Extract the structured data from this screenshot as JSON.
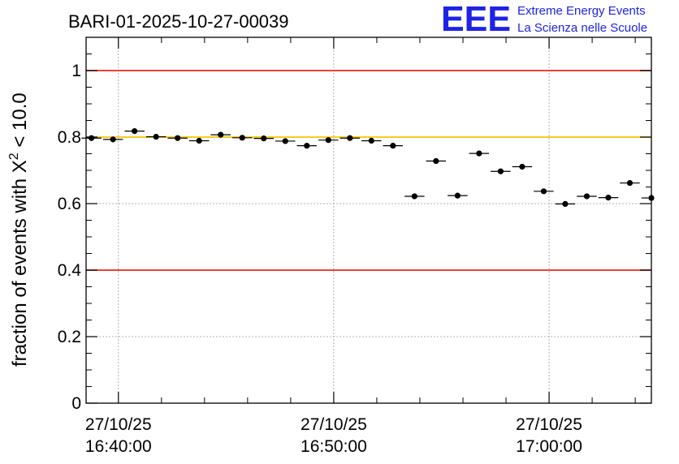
{
  "header": {
    "title": "BARI-01-2025-10-27-00039",
    "brand_logo": "EEE",
    "brand_line1": "Extreme Energy Events",
    "brand_line2": "La Scienza nelle Scuole",
    "brand_color": "#1f23e6"
  },
  "chart_data": {
    "type": "scatter",
    "title": "BARI-01-2025-10-27-00039",
    "ylabel_prefix": "fraction of events with ",
    "ylabel_chi": "X",
    "ylabel_sup": "2",
    "ylabel_suffix": " < 10.0",
    "ylim": [
      0,
      1.1
    ],
    "yticks": [
      0,
      0.2,
      0.4,
      0.6,
      0.8,
      1
    ],
    "ytick_labels": [
      "0",
      "0.2",
      "0.4",
      "0.6",
      "0.8",
      "1"
    ],
    "xlim": [
      "16:38:30",
      "17:04:45"
    ],
    "xticks": [
      {
        "date": "27/10/25",
        "time": "16:40:00"
      },
      {
        "date": "27/10/25",
        "time": "16:50:00"
      },
      {
        "date": "27/10/25",
        "time": "17:00:00"
      }
    ],
    "xtick_times": [
      "16:40:00",
      "16:50:00",
      "17:00:00"
    ],
    "grid": true,
    "reference_lines": [
      {
        "y": 1.0,
        "color": "#e8261f"
      },
      {
        "y": 0.8,
        "color": "#f7c600"
      },
      {
        "y": 0.4,
        "color": "#e8261f"
      }
    ],
    "series": [
      {
        "color": "#000000",
        "x": [
          "16:38:45",
          "16:39:45",
          "16:40:45",
          "16:41:45",
          "16:42:45",
          "16:43:45",
          "16:44:45",
          "16:45:45",
          "16:46:45",
          "16:47:45",
          "16:48:45",
          "16:49:45",
          "16:50:45",
          "16:51:45",
          "16:52:45",
          "16:53:45",
          "16:54:45",
          "16:55:45",
          "16:56:45",
          "16:57:45",
          "16:58:45",
          "16:59:45",
          "17:00:45",
          "17:01:45",
          "17:02:45",
          "17:03:45",
          "17:04:45"
        ],
        "values": [
          0.797,
          0.793,
          0.818,
          0.801,
          0.797,
          0.789,
          0.807,
          0.798,
          0.796,
          0.788,
          0.774,
          0.791,
          0.797,
          0.789,
          0.774,
          0.622,
          0.728,
          0.624,
          0.751,
          0.697,
          0.711,
          0.637,
          0.599,
          0.622,
          0.618,
          0.662,
          0.617
        ]
      }
    ]
  }
}
